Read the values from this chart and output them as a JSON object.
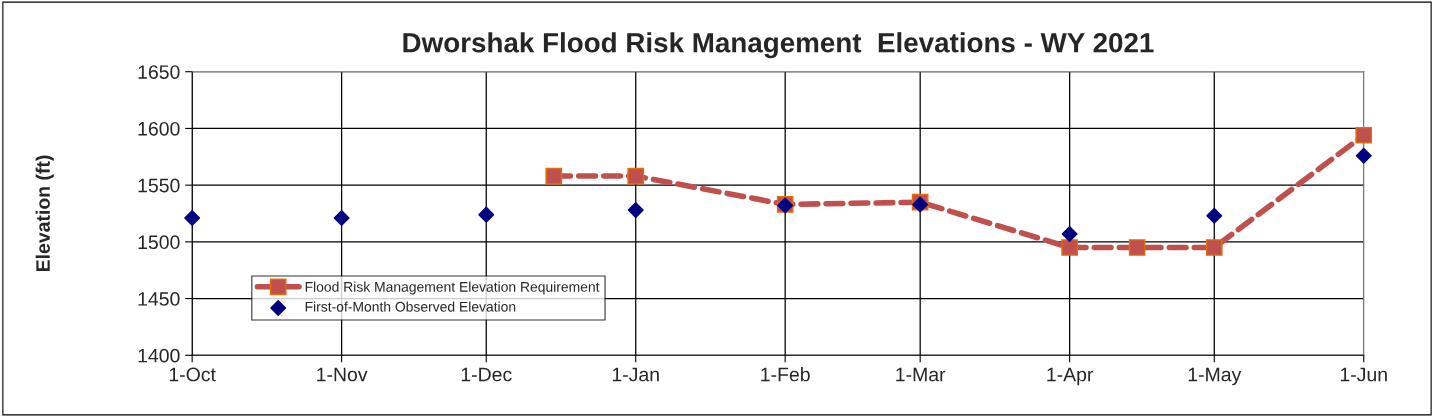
{
  "chart_data": {
    "type": "line",
    "title": "Dworshak Flood Risk Management  Elevations - WY 2021",
    "ylabel": "Elevation (ft)",
    "series": [
      {
        "name": "Flood Risk Management Elevation Requirement",
        "color": "#c0504d",
        "marker": "square",
        "line_style": "dashed",
        "x": [
          "2020-12-15",
          "2021-01-01",
          "2021-02-01",
          "2021-03-01",
          "2021-04-01",
          "2021-04-15",
          "2021-05-01",
          "2021-06-01"
        ],
        "values": [
          1558,
          1558,
          1533,
          1535,
          1495,
          1495,
          1495,
          1594
        ]
      },
      {
        "name": "First-of-Month Observed Elevation",
        "type": "scatter",
        "color": "#000080",
        "marker": "diamond",
        "x": [
          "2020-10-01",
          "2020-11-01",
          "2020-12-01",
          "2021-01-01",
          "2021-02-01",
          "2021-03-01",
          "2021-04-01",
          "2021-05-01",
          "2021-06-01"
        ],
        "values": [
          1521,
          1521,
          1524,
          1528,
          1532,
          1533,
          1507,
          1523,
          1576
        ]
      }
    ],
    "xlim": [
      "2020-10-01",
      "2021-06-01"
    ],
    "xticks": [
      {
        "value": "2020-10-01",
        "label": "1-Oct"
      },
      {
        "value": "2020-11-01",
        "label": "1-Nov"
      },
      {
        "value": "2020-12-01",
        "label": "1-Dec"
      },
      {
        "value": "2021-01-01",
        "label": "1-Jan"
      },
      {
        "value": "2021-02-01",
        "label": "1-Feb"
      },
      {
        "value": "2021-03-01",
        "label": "1-Mar"
      },
      {
        "value": "2021-04-01",
        "label": "1-Apr"
      },
      {
        "value": "2021-05-01",
        "label": "1-May"
      },
      {
        "value": "2021-06-01",
        "label": "1-Jun"
      }
    ],
    "ylim": [
      1400,
      1650
    ],
    "yticks": [
      1400,
      1450,
      1500,
      1550,
      1600,
      1650
    ],
    "grid": true,
    "legend": "bottom left"
  }
}
